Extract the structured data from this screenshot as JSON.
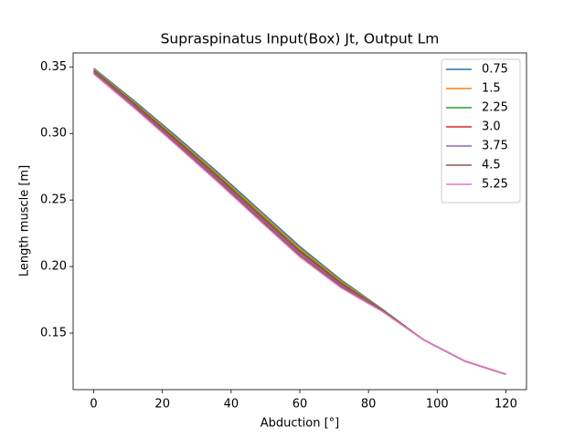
{
  "chart_data": {
    "type": "line",
    "title": "Supraspinatus Input(Box) Jt, Output Lm",
    "xlabel": "Abduction [°]",
    "ylabel": "Length muscle [m]",
    "x": [
      0,
      12,
      24,
      36,
      48,
      60,
      72,
      84,
      96,
      108,
      120
    ],
    "series": [
      {
        "name": "0.75",
        "color": "#1f77b4",
        "values": [
          0.349,
          0.324,
          0.298,
          0.271,
          0.243,
          0.215,
          0.19,
          0.168,
          0.145,
          0.129,
          0.119
        ]
      },
      {
        "name": "1.5",
        "color": "#ff7f0e",
        "values": [
          0.3483,
          0.3231,
          0.2969,
          0.2698,
          0.2417,
          0.2137,
          0.189,
          0.1677,
          0.145,
          0.129,
          0.119
        ]
      },
      {
        "name": "2.25",
        "color": "#2ca02c",
        "values": [
          0.3476,
          0.3222,
          0.2958,
          0.2686,
          0.2404,
          0.2124,
          0.188,
          0.1674,
          0.145,
          0.129,
          0.119
        ]
      },
      {
        "name": "3.0",
        "color": "#d62728",
        "values": [
          0.3469,
          0.3213,
          0.2947,
          0.2674,
          0.2391,
          0.2111,
          0.187,
          0.1671,
          0.145,
          0.129,
          0.119
        ]
      },
      {
        "name": "3.75",
        "color": "#9467bd",
        "values": [
          0.3462,
          0.3204,
          0.2936,
          0.2662,
          0.2378,
          0.2098,
          0.186,
          0.1668,
          0.145,
          0.129,
          0.119
        ]
      },
      {
        "name": "4.5",
        "color": "#8c564b",
        "values": [
          0.3455,
          0.3195,
          0.2925,
          0.265,
          0.2365,
          0.2085,
          0.185,
          0.1665,
          0.145,
          0.129,
          0.119
        ]
      },
      {
        "name": "5.25",
        "color": "#e377c2",
        "values": [
          0.3448,
          0.3186,
          0.2914,
          0.2638,
          0.2352,
          0.2072,
          0.184,
          0.1662,
          0.145,
          0.129,
          0.119
        ]
      }
    ],
    "xlim": [
      -6,
      126
    ],
    "xticks": [
      0,
      20,
      40,
      60,
      80,
      100,
      120
    ],
    "ylim": [
      0.1075,
      0.3605
    ],
    "yticks": [
      0.15,
      {
        "value": 0.2,
        "label": "0.20"
      },
      0.25,
      {
        "value": 0.3,
        "label": "0.30"
      },
      0.35
    ],
    "legend": "upper right"
  }
}
